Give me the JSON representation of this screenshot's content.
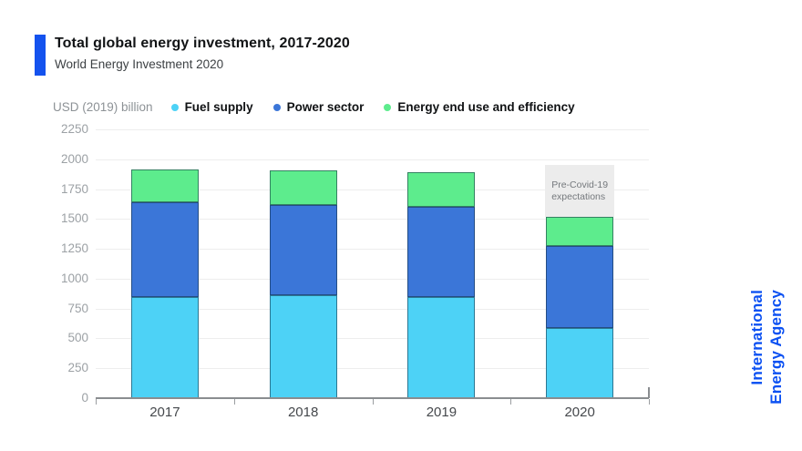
{
  "header": {
    "title": "Total global energy investment, 2017-2020",
    "subtitle": "World Energy Investment 2020"
  },
  "chart_data": {
    "type": "bar",
    "stacked": true,
    "title": "Total global energy investment, 2017-2020",
    "subtitle": "World Energy Investment 2020",
    "unit_label": "USD (2019) billion",
    "categories": [
      "2017",
      "2018",
      "2019",
      "2020"
    ],
    "series": [
      {
        "name": "Fuel supply",
        "color": "#4DD2F6",
        "values": [
          850,
          860,
          850,
          590
        ]
      },
      {
        "name": "Power sector",
        "color": "#3B76D8",
        "values": [
          790,
          755,
          755,
          680
        ]
      },
      {
        "name": "Energy end use and efficiency",
        "color": "#5DEC8D",
        "values": [
          275,
          290,
          285,
          250
        ]
      }
    ],
    "totals": [
      1915,
      1905,
      1890,
      1520
    ],
    "ylim": [
      0,
      2250
    ],
    "yticks": [
      0,
      250,
      500,
      750,
      1000,
      1250,
      1500,
      1750,
      2000,
      2250
    ],
    "grid": true,
    "legend_position": "top",
    "annotation": {
      "text_line1": "Pre-Covid-19",
      "text_line2": "expectations",
      "category": "2020",
      "value_from": 1520,
      "value_to": 1950,
      "fill": "#ECECEC",
      "text_color": "#75797D"
    }
  },
  "footer": {
    "logo_line1": "International",
    "logo_line2": "Energy Agency",
    "logo_color": "#0C51F2"
  },
  "colors": {
    "accent_bar": "#1452EE",
    "axis_line": "#8A8D90",
    "gridline": "#EDEDED",
    "ytick_label": "#9CA1A5",
    "xtick_label": "#45484C",
    "segment_border": "rgba(18,44,64,0.55)"
  }
}
